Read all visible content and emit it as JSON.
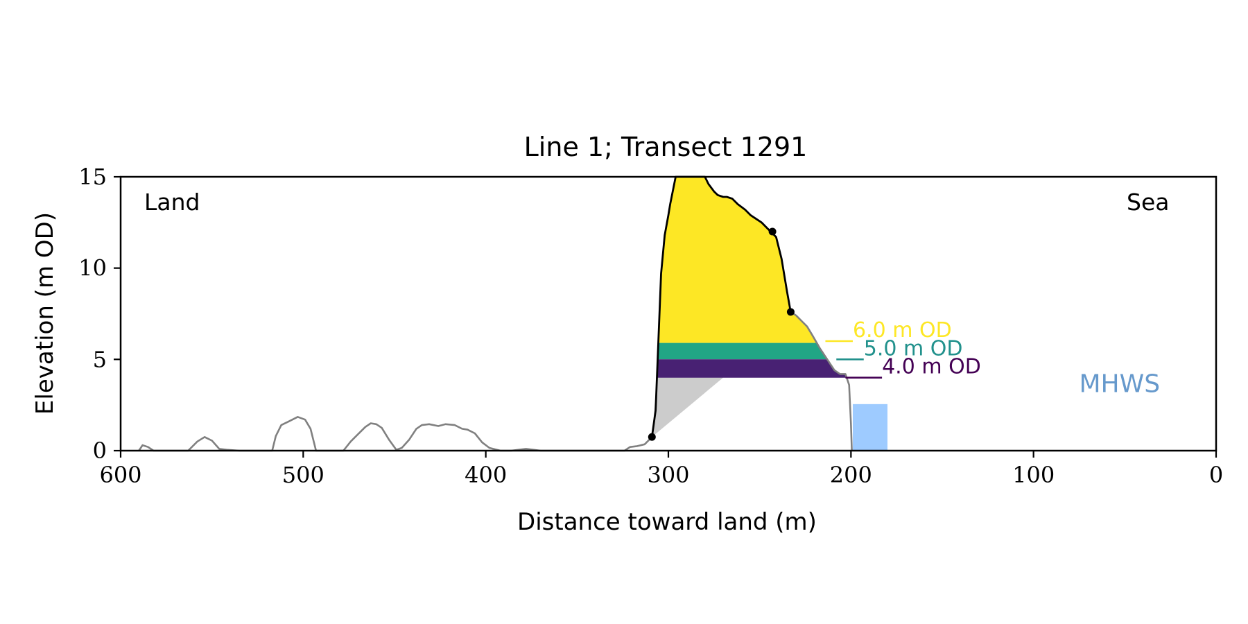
{
  "chart_data": {
    "type": "area",
    "title": "Line 1; Transect 1291",
    "xlabel": "Distance toward land (m)",
    "ylabel": "Elevation (m OD)",
    "xlim": [
      600,
      0
    ],
    "ylim": [
      0,
      15
    ],
    "x_ticks": [
      600,
      500,
      400,
      300,
      200,
      100,
      0
    ],
    "y_ticks": [
      0,
      5,
      10,
      15
    ],
    "grid": false,
    "corner_labels": {
      "land": "Land",
      "sea": "Sea"
    },
    "colors": {
      "ground_line": "#808080",
      "cliff_line": "#000000",
      "fill_6": "#fde725",
      "fill_5": "#21a685",
      "fill_4": "#482173",
      "talus": "#cccccc",
      "mhws": "#9ecbff",
      "mhws_text": "#6699cc",
      "label_6": "#fde725",
      "label_5": "#21918c",
      "label_4": "#440154"
    },
    "ground_profile": {
      "x": [
        590,
        588,
        585,
        582,
        563,
        558,
        554,
        550,
        546,
        542,
        535,
        517,
        515,
        512,
        508,
        503,
        499,
        496,
        493,
        478,
        474,
        470,
        466,
        463,
        460,
        457,
        453,
        449,
        446,
        442,
        438,
        435,
        431,
        426,
        422,
        417,
        413,
        410,
        406,
        402,
        398,
        392,
        386,
        382,
        378,
        374,
        370,
        324,
        321,
        317,
        313,
        309
      ],
      "y": [
        0,
        0.3,
        0.2,
        0,
        0,
        0.5,
        0.75,
        0.55,
        0.1,
        0.05,
        0,
        0,
        0.8,
        1.4,
        1.6,
        1.85,
        1.7,
        1.2,
        0,
        0,
        0.5,
        0.9,
        1.3,
        1.5,
        1.45,
        1.25,
        0.6,
        0.05,
        0.15,
        0.6,
        1.2,
        1.4,
        1.45,
        1.35,
        1.45,
        1.4,
        1.2,
        1.15,
        0.95,
        0.45,
        0.15,
        0,
        0,
        0.05,
        0.1,
        0.05,
        0,
        0,
        0.2,
        0.25,
        0.35,
        0.75
      ]
    },
    "cliff_profile": {
      "x": [
        309,
        307,
        304,
        302,
        300,
        299,
        296,
        291,
        289,
        287,
        285,
        282,
        280,
        278,
        275,
        273,
        270,
        268,
        265,
        262,
        258,
        255,
        252,
        249,
        246,
        244,
        241,
        238,
        235,
        233
      ],
      "y": [
        0.75,
        2.2,
        9.7,
        11.8,
        12.9,
        13.5,
        15,
        15,
        15,
        15,
        15,
        15,
        15,
        14.6,
        14.2,
        14.0,
        13.9,
        13.9,
        13.8,
        13.5,
        13.2,
        12.9,
        12.7,
        12.5,
        12.2,
        12.0,
        11.7,
        10.5,
        8.7,
        7.6
      ]
    },
    "toe_profile": {
      "x": [
        233,
        230,
        227,
        224,
        221,
        217,
        213,
        209,
        206,
        203,
        201,
        200,
        199.5
      ],
      "y": [
        7.6,
        7.4,
        7.1,
        6.8,
        6.3,
        5.6,
        5.0,
        4.4,
        4.2,
        4.2,
        3.6,
        1.5,
        0
      ]
    },
    "markers": [
      {
        "x": 309,
        "y": 0.75
      },
      {
        "x": 243,
        "y": 12.0
      },
      {
        "x": 233,
        "y": 7.6
      }
    ],
    "bands": [
      {
        "name": "fill_6",
        "label": "6.0 m OD",
        "level": 6.0,
        "from": 4.0,
        "to": 15
      },
      {
        "name": "fill_5",
        "label": "5.0 m OD",
        "level": 5.0,
        "from": 4.0,
        "to": 5.9
      },
      {
        "name": "fill_4",
        "label": "4.0 m OD",
        "level": 4.0,
        "from": 4.0,
        "to": 5.0
      }
    ],
    "level_labels": [
      {
        "text": "6.0 m OD",
        "level": 6.0,
        "x_start": 214,
        "x_end": 199
      },
      {
        "text": "5.0 m OD",
        "level": 5.0,
        "x_start": 208,
        "x_end": 193
      },
      {
        "text": "4.0 m OD",
        "level": 4.0,
        "x_start": 203,
        "x_end": 183
      }
    ],
    "mhws": {
      "label": "MHWS",
      "x_from": 199,
      "x_to": 180,
      "y_from": 0,
      "y_to": 2.55
    }
  }
}
